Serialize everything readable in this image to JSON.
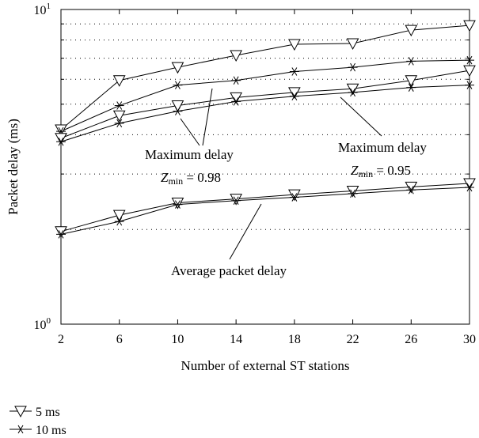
{
  "chart_data": {
    "type": "line",
    "xlabel": "Number of external ST stations",
    "ylabel": "Packet delay (ms)",
    "y_scale": "log",
    "ylim": [
      1,
      10
    ],
    "xlim": [
      2,
      30
    ],
    "x_ticks": [
      2,
      6,
      10,
      14,
      18,
      22,
      26,
      30
    ],
    "y_ticks": [
      {
        "value": 1,
        "base": "10",
        "exp": "0"
      },
      {
        "value": 10,
        "base": "10",
        "exp": "1"
      }
    ],
    "grid": "dotted horizontal",
    "x": [
      2,
      6,
      10,
      14,
      18,
      22,
      26,
      30
    ],
    "series": [
      {
        "legend": "5 ms",
        "marker": "triangle-down",
        "group": "Maximum delay Z_min = 0.98",
        "values": [
          4.15,
          5.95,
          6.55,
          7.15,
          7.75,
          7.8,
          8.6,
          8.9
        ]
      },
      {
        "legend": "10 ms",
        "marker": "asterisk",
        "group": "Maximum delay Z_min = 0.98",
        "values": [
          4.1,
          4.95,
          5.75,
          5.95,
          6.35,
          6.55,
          6.85,
          6.9
        ]
      },
      {
        "legend": "5 ms",
        "marker": "triangle-down",
        "group": "Maximum delay Z_min = 0.95",
        "values": [
          3.9,
          4.6,
          4.95,
          5.25,
          5.45,
          5.6,
          5.95,
          6.4
        ]
      },
      {
        "legend": "10 ms",
        "marker": "asterisk",
        "group": "Maximum delay Z_min = 0.95",
        "values": [
          3.8,
          4.35,
          4.75,
          5.1,
          5.3,
          5.45,
          5.65,
          5.75
        ]
      },
      {
        "legend": "5 ms",
        "marker": "triangle-down",
        "group": "Average packet delay",
        "values": [
          1.97,
          2.22,
          2.43,
          2.5,
          2.58,
          2.65,
          2.73,
          2.8
        ]
      },
      {
        "legend": "10 ms",
        "marker": "asterisk",
        "group": "Average packet delay",
        "values": [
          1.93,
          2.12,
          2.4,
          2.47,
          2.53,
          2.6,
          2.67,
          2.72
        ]
      }
    ],
    "annotations": [
      {
        "name": "annot-max-098",
        "line1": "Maximum delay",
        "z": "Z",
        "sub": "min",
        "rest": " = 0.98"
      },
      {
        "name": "annot-max-095",
        "line1": "Maximum delay",
        "z": "Z",
        "sub": "min",
        "rest": " = 0.95"
      },
      {
        "name": "annot-average",
        "text": "Average packet delay"
      }
    ],
    "legend": [
      {
        "label": "5 ms",
        "marker": "triangle-down"
      },
      {
        "label": "10 ms",
        "marker": "asterisk"
      }
    ],
    "legend_position": "bottom-left, below plot"
  }
}
